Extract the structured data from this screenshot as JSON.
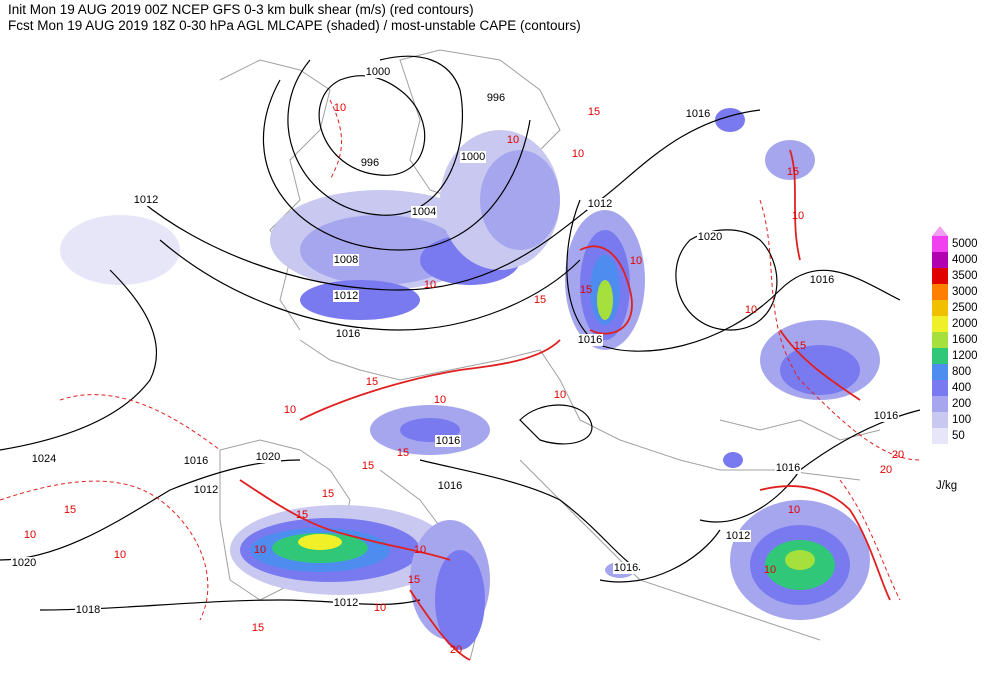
{
  "header": {
    "line1": "Init  Mon 19 AUG 2019 00Z  NCEP GFS 0-3 km bulk shear (m/s) (red contours)",
    "line2": "Fcst Mon 19 AUG 2019 18Z  0-30 hPa AGL MLCAPE (shaded) / most-unstable CAPE (contours)"
  },
  "legend": {
    "unit": "J/kg",
    "top_color": "#f0a0f0",
    "levels": [
      {
        "value": 50,
        "color": "#e6e6f8"
      },
      {
        "value": 100,
        "color": "#c8c8f0"
      },
      {
        "value": 200,
        "color": "#a6a6ee"
      },
      {
        "value": 400,
        "color": "#7a7af0"
      },
      {
        "value": 800,
        "color": "#4e8cf0"
      },
      {
        "value": 1200,
        "color": "#30c878"
      },
      {
        "value": 1600,
        "color": "#a6e03c"
      },
      {
        "value": 2000,
        "color": "#f0f028"
      },
      {
        "value": 2500,
        "color": "#f0c000"
      },
      {
        "value": 3000,
        "color": "#ff8000"
      },
      {
        "value": 3500,
        "color": "#e00000"
      },
      {
        "value": 4000,
        "color": "#b000b0"
      },
      {
        "value": 5000,
        "color": "#f040f0"
      }
    ]
  },
  "pressure_labels": [
    "1000",
    "996",
    "996",
    "1000",
    "1004",
    "1008",
    "1012",
    "1012",
    "1016",
    "1016",
    "1016",
    "1020",
    "1016",
    "1016",
    "1016",
    "1016",
    "1020",
    "1012",
    "1016",
    "1024",
    "1020",
    "1018",
    "1012",
    "1016",
    "1012",
    "1016",
    "1012"
  ],
  "shear_labels": [
    "10",
    "10",
    "10",
    "15",
    "15",
    "10",
    "10",
    "15",
    "10",
    "15",
    "10",
    "15",
    "10",
    "10",
    "15",
    "10",
    "15",
    "15",
    "15",
    "15",
    "10",
    "10",
    "15",
    "10",
    "15",
    "20",
    "20",
    "20",
    "10",
    "15",
    "10",
    "10",
    "10"
  ]
}
